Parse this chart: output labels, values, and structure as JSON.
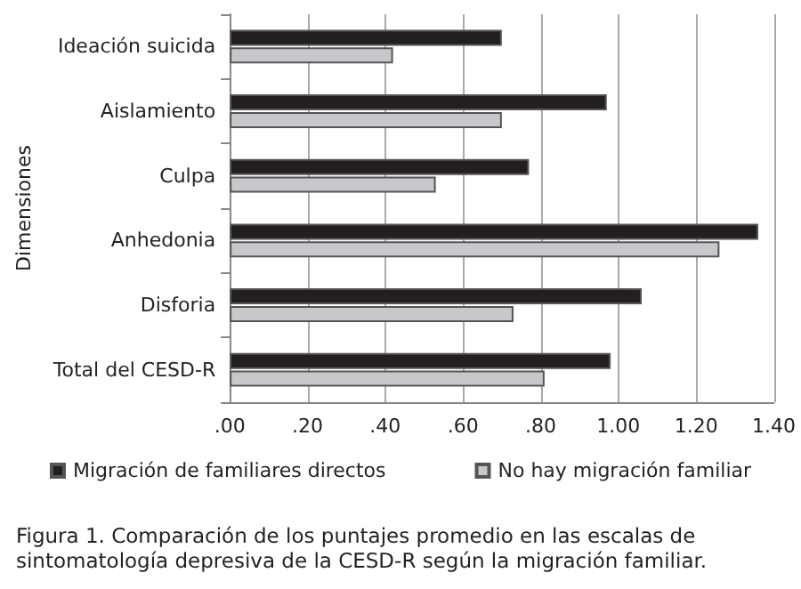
{
  "chart_data": {
    "type": "bar",
    "orientation": "horizontal",
    "title": "Figura 1. Comparación de los puntajes promedio en las escalas de sintomatología depresiva de la CESD-R según la migración familiar.",
    "ylabel": "Dimensiones",
    "categories": [
      "Ideación suicida",
      "Aislamiento",
      "Culpa",
      "Anhedonia",
      "Disforia",
      "Total del CESD-R"
    ],
    "series": [
      {
        "name": "Migración de familiares directos",
        "color": "#231f20",
        "values": [
          0.7,
          0.97,
          0.77,
          1.36,
          1.06,
          0.98
        ]
      },
      {
        "name": "No hay migración familiar",
        "color": "#c8c8cc",
        "values": [
          0.42,
          0.7,
          0.53,
          1.26,
          0.73,
          0.81
        ]
      }
    ],
    "xlim": [
      0,
      1.4
    ],
    "xticks": [
      {
        "value": 0,
        "label": ".00"
      },
      {
        "value": 0.2,
        "label": ".20"
      },
      {
        "value": 0.4,
        "label": ".40"
      },
      {
        "value": 0.6,
        "label": ".60"
      },
      {
        "value": 0.8,
        "label": ".80"
      },
      {
        "value": 1,
        "label": "1.00"
      },
      {
        "value": 1.2,
        "label": "1.20"
      },
      {
        "value": 1.4,
        "label": "1.40"
      }
    ],
    "grid": "x",
    "legend": "bottom"
  }
}
